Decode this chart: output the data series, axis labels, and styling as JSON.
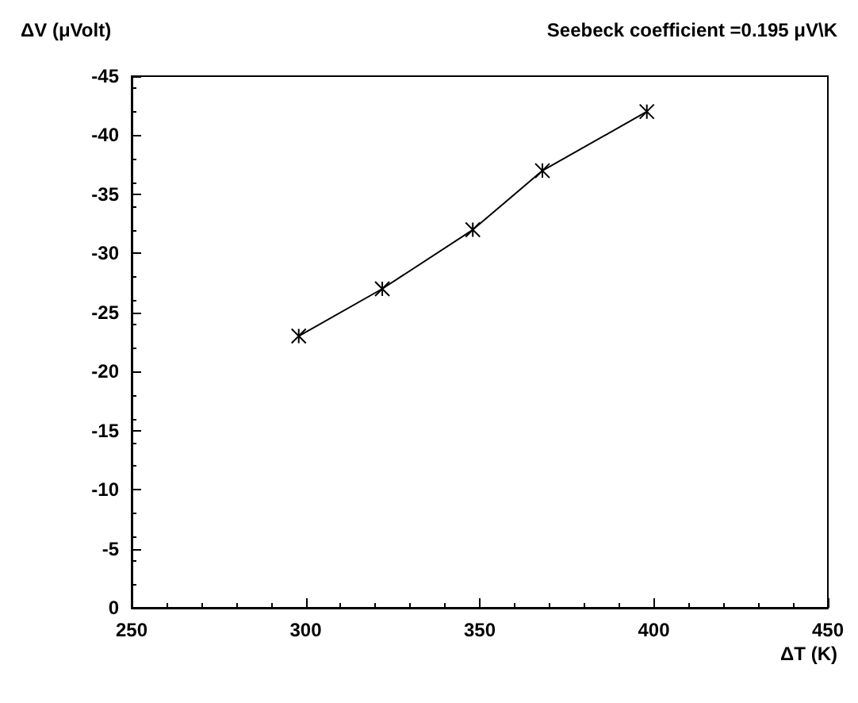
{
  "chart_data": {
    "type": "line",
    "ylabel": "ΔV (μVolt)",
    "xlabel": "ΔT (K)",
    "annotations": [
      "Seebeck coefficient =0.195 μV\\K"
    ],
    "x": [
      298,
      322,
      348,
      368,
      398
    ],
    "series": [
      {
        "color": "#000000",
        "values": [
          -23,
          -27,
          -32,
          -37,
          -42
        ]
      }
    ],
    "xlim": [
      250,
      450
    ],
    "xticks": [
      250,
      300,
      350,
      400,
      450
    ],
    "ylim": [
      0,
      -45
    ],
    "yticks": [
      0,
      -5,
      -10,
      -15,
      -20,
      -25,
      -30,
      -35,
      -40,
      -45
    ],
    "marker": "cross",
    "line_style": "solid"
  }
}
